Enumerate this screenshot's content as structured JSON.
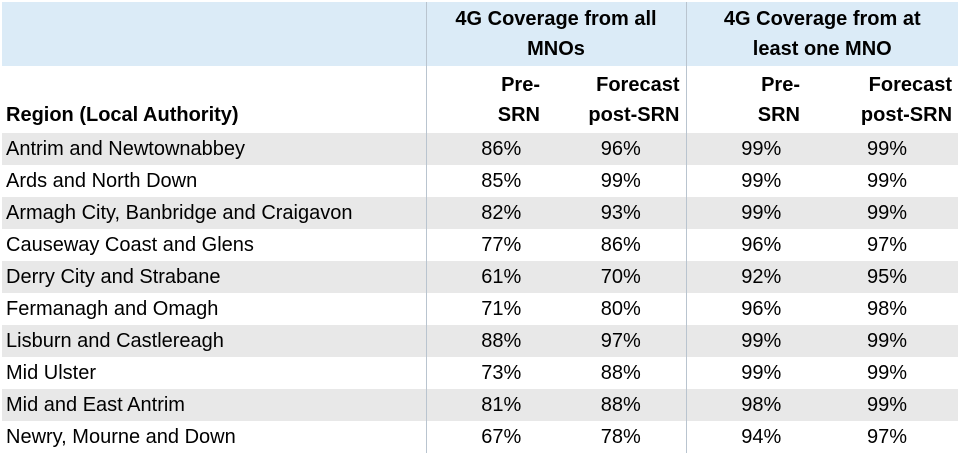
{
  "table": {
    "group_headers": [
      "4G Coverage from all MNOs",
      "4G Coverage from at least one MNO"
    ],
    "group_header_lines": [
      [
        "4G Coverage from all",
        "MNOs"
      ],
      [
        "4G Coverage from at",
        "least one MNO"
      ]
    ],
    "sub_headers": {
      "region": "Region (Local Authority)",
      "pre_lines": [
        "Pre-",
        "SRN"
      ],
      "post_lines": [
        "Forecast",
        "post-SRN"
      ]
    },
    "rows": [
      {
        "region": "Antrim and Newtownabbey",
        "all_pre": "86%",
        "all_post": "96%",
        "one_pre": "99%",
        "one_post": "99%"
      },
      {
        "region": "Ards and North Down",
        "all_pre": "85%",
        "all_post": "99%",
        "one_pre": "99%",
        "one_post": "99%"
      },
      {
        "region": "Armagh City, Banbridge and Craigavon",
        "all_pre": "82%",
        "all_post": "93%",
        "one_pre": "99%",
        "one_post": "99%"
      },
      {
        "region": "Causeway Coast and Glens",
        "all_pre": "77%",
        "all_post": "86%",
        "one_pre": "96%",
        "one_post": "97%"
      },
      {
        "region": "Derry City and Strabane",
        "all_pre": "61%",
        "all_post": "70%",
        "one_pre": "92%",
        "one_post": "95%"
      },
      {
        "region": "Fermanagh and Omagh",
        "all_pre": "71%",
        "all_post": "80%",
        "one_pre": "96%",
        "one_post": "98%"
      },
      {
        "region": "Lisburn and Castlereagh",
        "all_pre": "88%",
        "all_post": "97%",
        "one_pre": "99%",
        "one_post": "99%"
      },
      {
        "region": "Mid Ulster",
        "all_pre": "73%",
        "all_post": "88%",
        "one_pre": "99%",
        "one_post": "99%"
      },
      {
        "region": "Mid and East Antrim",
        "all_pre": "81%",
        "all_post": "88%",
        "one_pre": "98%",
        "one_post": "99%"
      },
      {
        "region": "Newry, Mourne and Down",
        "all_pre": "67%",
        "all_post": "78%",
        "one_pre": "94%",
        "one_post": "97%"
      }
    ]
  }
}
